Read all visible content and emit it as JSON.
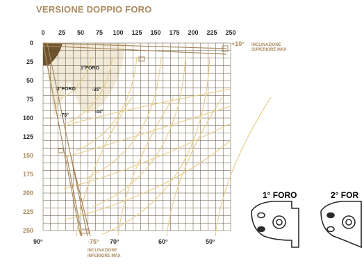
{
  "title": "VERSIONE DOPPIO FORO",
  "colors": {
    "accent": "#a98a5e",
    "grid": "#5a4a35",
    "curves": "#e6cf8f",
    "sector_light": "#f1ead8",
    "sector_dark": "#6e5430",
    "text_dark": "#2b2b2b"
  },
  "x_ticks": [
    "0",
    "25",
    "50",
    "75",
    "100",
    "125",
    "150",
    "175",
    "200",
    "225",
    "250"
  ],
  "y_ticks": [
    "0",
    "25",
    "50",
    "75",
    "100",
    "125",
    "150",
    "175",
    "200",
    "225",
    "250"
  ],
  "bottom_angles": [
    "90°",
    "-75°",
    "70°",
    "60°",
    "50°"
  ],
  "annotations": {
    "top_angle": "+10°",
    "top_max_line1": "INCLINAZIONE",
    "top_max_line2": "SUPERIORE MAX",
    "bottom_max_line1": "INCLINAZIONE",
    "bottom_max_line2": "INFERIORE MAX",
    "first_hole": "1°FORO",
    "second_hole": "2°FORO",
    "angle_a": "-35°",
    "angle_b": "-44°",
    "angle_c": "-75°"
  },
  "foro_labels": [
    "1° FORO",
    "2° FOR"
  ]
}
